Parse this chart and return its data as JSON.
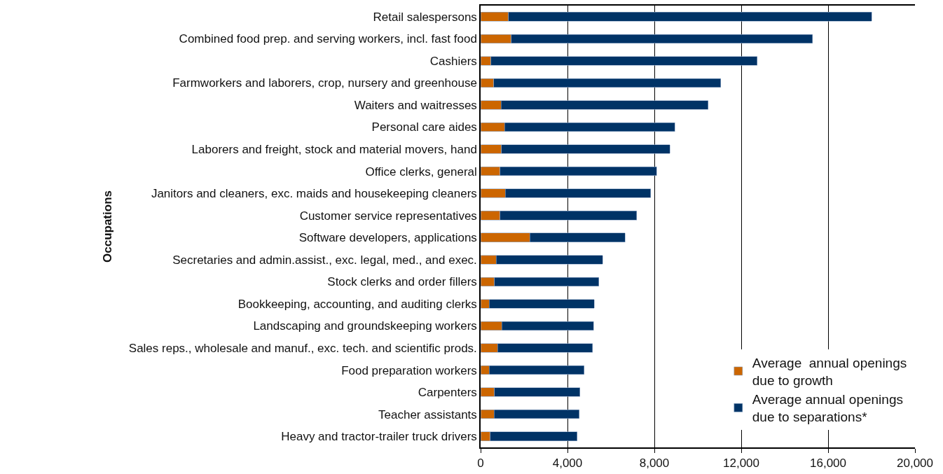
{
  "chart_data": {
    "type": "bar",
    "orientation": "horizontal",
    "stacked": true,
    "ylabel": "Occupations",
    "categories": [
      "Retail salespersons",
      "Combined food prep. and serving workers, incl. fast food",
      "Cashiers",
      "Farmworkers and laborers, crop, nursery and greenhouse",
      "Waiters and waitresses",
      "Personal care aides",
      "Laborers and freight, stock and material movers, hand",
      "Office clerks, general",
      "Janitors and cleaners, exc. maids and housekeeping cleaners",
      "Customer service representatives",
      "Software developers, applications",
      "Secretaries and admin.assist., exc. legal, med., and exec.",
      "Stock clerks and order fillers",
      "Bookkeeping, accounting, and auditing clerks",
      "Landscaping and groundskeeping workers",
      "Sales reps., wholesale and manuf., exc. tech. and scientific prods.",
      "Food preparation workers",
      "Carpenters",
      "Teacher assistants",
      "Heavy and tractor-trailer truck drivers"
    ],
    "series": [
      {
        "name": "Average  annual openings due to growth",
        "color": "#cc6600",
        "values": [
          1280,
          1410,
          480,
          600,
          950,
          1100,
          960,
          890,
          1130,
          890,
          2260,
          710,
          630,
          390,
          970,
          790,
          400,
          630,
          620,
          440
        ]
      },
      {
        "name": "Average annual openings due to separations*",
        "color": "#003366",
        "values": [
          16720,
          13880,
          12260,
          10460,
          9530,
          7840,
          7750,
          7210,
          6700,
          6290,
          4400,
          4910,
          4810,
          4850,
          4230,
          4360,
          4370,
          3950,
          3920,
          4000
        ]
      }
    ],
    "xlim": [
      0,
      20000
    ],
    "xticks": [
      {
        "value": 0,
        "label": "0"
      },
      {
        "value": 4000,
        "label": "4,000"
      },
      {
        "value": 8000,
        "label": "8,000"
      },
      {
        "value": 12000,
        "label": "12,000"
      },
      {
        "value": 16000,
        "label": "16,000"
      },
      {
        "value": 20000,
        "label": "20,000"
      }
    ],
    "grid": "x",
    "legend": "bottom right"
  }
}
